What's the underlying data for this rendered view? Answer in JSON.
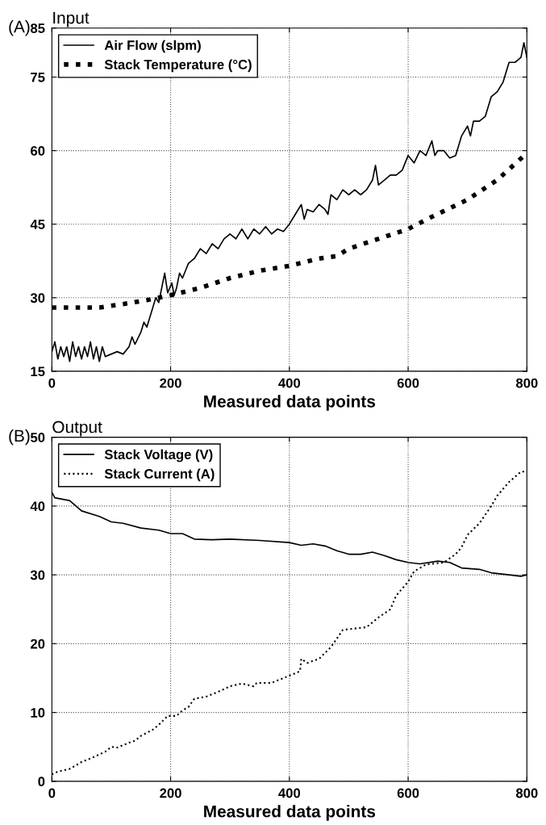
{
  "chart_data": [
    {
      "type": "line",
      "title": "Input",
      "annotations": [
        "(A)"
      ],
      "xlabel": "Measured data points",
      "xlim": [
        0,
        800
      ],
      "xticks": [
        0,
        200,
        400,
        600,
        800
      ],
      "ylim": [
        15,
        85
      ],
      "yticks": [
        15,
        30,
        45,
        60,
        75,
        85
      ],
      "grid": true,
      "legend": "top left",
      "series": [
        {
          "name": "Air Flow (slpm)",
          "color": "#000000",
          "line_style": "solid",
          "x": [
            0,
            5,
            10,
            15,
            20,
            25,
            30,
            35,
            40,
            45,
            50,
            55,
            60,
            65,
            70,
            75,
            80,
            85,
            90,
            100,
            110,
            120,
            130,
            135,
            140,
            150,
            155,
            160,
            165,
            170,
            175,
            180,
            185,
            190,
            195,
            202,
            206,
            210,
            215,
            220,
            230,
            240,
            250,
            260,
            270,
            280,
            290,
            300,
            310,
            320,
            330,
            340,
            350,
            360,
            370,
            380,
            390,
            400,
            410,
            420,
            425,
            430,
            440,
            450,
            460,
            465,
            470,
            480,
            490,
            500,
            510,
            520,
            530,
            540,
            545,
            550,
            560,
            570,
            580,
            590,
            600,
            610,
            620,
            630,
            640,
            645,
            650,
            660,
            670,
            680,
            690,
            700,
            705,
            710,
            720,
            730,
            740,
            750,
            760,
            770,
            780,
            790,
            795,
            800
          ],
          "values": [
            19,
            21,
            17.5,
            20,
            18,
            20,
            17,
            21,
            18,
            20,
            17.5,
            20,
            18,
            21,
            17.5,
            20,
            17,
            20,
            18,
            18.5,
            19,
            18.5,
            20,
            22,
            20.5,
            23,
            25,
            24,
            26,
            28,
            30,
            29,
            32,
            35,
            31,
            33,
            30.5,
            32,
            35,
            34,
            37,
            38,
            40,
            39,
            41,
            40,
            42,
            43,
            42,
            44,
            42,
            44,
            43,
            44.5,
            43,
            44,
            43.5,
            45,
            47,
            49,
            46,
            48,
            47.5,
            49,
            48,
            47,
            51,
            50,
            52,
            51,
            52,
            51,
            52,
            54,
            57,
            53,
            54,
            55,
            55,
            56,
            59,
            57.5,
            60,
            59,
            62,
            59,
            60,
            60,
            58.5,
            59,
            63,
            65,
            63,
            66,
            66,
            67,
            71,
            72,
            74,
            78,
            78,
            79,
            82,
            79
          ]
        },
        {
          "name": "Stack Temperature (°C)",
          "color": "#000000",
          "line_style": "dotted",
          "x": [
            0,
            80,
            120,
            160,
            200,
            250,
            300,
            350,
            400,
            450,
            480,
            500,
            550,
            600,
            640,
            700,
            750,
            800
          ],
          "values": [
            28,
            28,
            28.7,
            29.5,
            30.5,
            32,
            34,
            35.5,
            36.5,
            38,
            38.5,
            40,
            42,
            44,
            46.5,
            50,
            54,
            59.5
          ]
        }
      ]
    },
    {
      "type": "line",
      "title": "Output",
      "annotations": [
        "(B)"
      ],
      "xlabel": "Measured data points",
      "xlim": [
        0,
        800
      ],
      "xticks": [
        0,
        200,
        400,
        600,
        800
      ],
      "ylim": [
        0,
        50
      ],
      "yticks": [
        0,
        10,
        20,
        30,
        40,
        50
      ],
      "grid": true,
      "legend": "top left",
      "series": [
        {
          "name": "Stack Voltage (V)",
          "color": "#000000",
          "line_style": "solid",
          "x": [
            0,
            5,
            30,
            50,
            80,
            100,
            120,
            150,
            180,
            200,
            220,
            240,
            270,
            300,
            350,
            400,
            420,
            440,
            460,
            480,
            500,
            520,
            540,
            560,
            580,
            600,
            620,
            650,
            670,
            690,
            720,
            740,
            770,
            790,
            800
          ],
          "values": [
            42,
            41.2,
            40.8,
            39.3,
            38.5,
            37.7,
            37.5,
            36.8,
            36.5,
            36,
            36,
            35.2,
            35.1,
            35.2,
            35,
            34.7,
            34.3,
            34.5,
            34.2,
            33.5,
            33,
            33,
            33.3,
            32.8,
            32.2,
            31.8,
            31.6,
            32,
            31.8,
            31,
            30.8,
            30.3,
            30,
            29.8,
            30
          ]
        },
        {
          "name": "Stack Current (A)",
          "color": "#000000",
          "line_style": "dotted",
          "x": [
            0,
            10,
            30,
            50,
            70,
            90,
            100,
            110,
            130,
            140,
            150,
            170,
            180,
            195,
            210,
            220,
            230,
            240,
            260,
            280,
            300,
            320,
            340,
            345,
            370,
            390,
            410,
            418,
            420,
            430,
            450,
            470,
            490,
            510,
            530,
            550,
            570,
            580,
            600,
            610,
            630,
            660,
            680,
            690,
            700,
            720,
            740,
            750,
            770,
            790,
            800
          ],
          "values": [
            1,
            1.4,
            1.8,
            2.8,
            3.5,
            4.3,
            5,
            4.9,
            5.6,
            5.9,
            6.6,
            7.5,
            8.2,
            9.5,
            9.5,
            10.3,
            10.8,
            12,
            12.3,
            13,
            13.8,
            14.2,
            13.8,
            14.3,
            14.3,
            15,
            15.7,
            16,
            17.8,
            17.2,
            17.8,
            19.5,
            22,
            22.2,
            22.4,
            23.8,
            25,
            27,
            29,
            30.5,
            31.5,
            31.8,
            33,
            34,
            35.8,
            37.5,
            40,
            41.5,
            43.5,
            45,
            45
          ]
        }
      ]
    }
  ]
}
